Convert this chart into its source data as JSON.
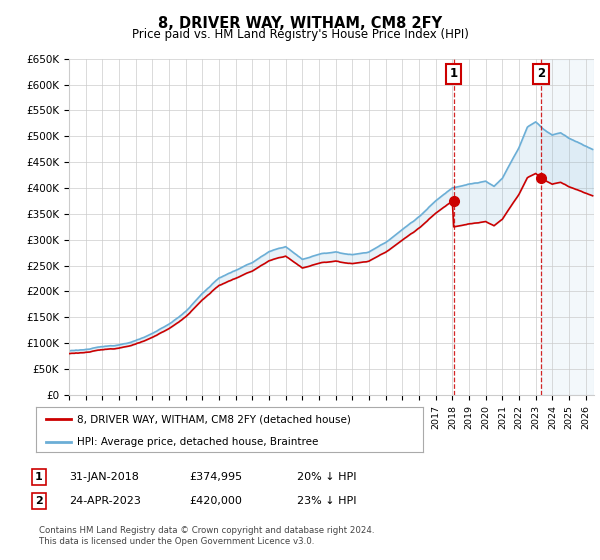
{
  "title": "8, DRIVER WAY, WITHAM, CM8 2FY",
  "subtitle": "Price paid vs. HM Land Registry's House Price Index (HPI)",
  "ylabel_ticks": [
    "£0",
    "£50K",
    "£100K",
    "£150K",
    "£200K",
    "£250K",
    "£300K",
    "£350K",
    "£400K",
    "£450K",
    "£500K",
    "£550K",
    "£600K",
    "£650K"
  ],
  "ytick_values": [
    0,
    50000,
    100000,
    150000,
    200000,
    250000,
    300000,
    350000,
    400000,
    450000,
    500000,
    550000,
    600000,
    650000
  ],
  "xlim_start": 1995.0,
  "xlim_end": 2026.5,
  "ylim_min": 0,
  "ylim_max": 650000,
  "hpi_color": "#6baed6",
  "price_color": "#cc0000",
  "marker1_date": 2018.08,
  "marker1_price": 374995,
  "marker2_date": 2023.32,
  "marker2_price": 420000,
  "vline1_x": 2018.08,
  "vline2_x": 2023.32,
  "legend_line1": "8, DRIVER WAY, WITHAM, CM8 2FY (detached house)",
  "legend_line2": "HPI: Average price, detached house, Braintree",
  "table_row1_num": "1",
  "table_row1_date": "31-JAN-2018",
  "table_row1_price": "£374,995",
  "table_row1_hpi": "20% ↓ HPI",
  "table_row2_num": "2",
  "table_row2_date": "24-APR-2023",
  "table_row2_price": "£420,000",
  "table_row2_hpi": "23% ↓ HPI",
  "footnote": "Contains HM Land Registry data © Crown copyright and database right 2024.\nThis data is licensed under the Open Government Licence v3.0.",
  "background_color": "#ffffff",
  "grid_color": "#cccccc"
}
